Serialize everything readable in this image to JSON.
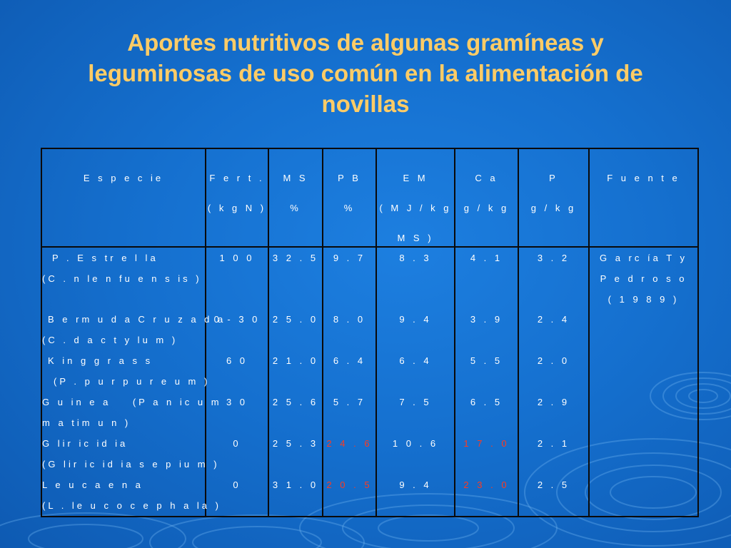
{
  "title": {
    "line1": "Aportes nutritivos de algunas gramíneas y",
    "line2": "leguminosas de uso común en la alimentación de",
    "line3": "novillas"
  },
  "colors": {
    "background": "#1570cf",
    "title": "#ffcc66",
    "text": "#ffffff",
    "highlight": "#ff3a1f",
    "border": "#0a0a0a"
  },
  "table": {
    "headers": [
      {
        "lines": [
          "E s p e c ie"
        ]
      },
      {
        "lines": [
          "F e r t .",
          "( k g N )"
        ]
      },
      {
        "lines": [
          "M S",
          "%"
        ]
      },
      {
        "lines": [
          "P B",
          "%"
        ]
      },
      {
        "lines": [
          "E M",
          "( M J / k g",
          "M S )"
        ]
      },
      {
        "lines": [
          "C a",
          "g / k g"
        ]
      },
      {
        "lines": [
          "P",
          "g / k g"
        ]
      },
      {
        "lines": [
          "F u e n t e"
        ]
      }
    ],
    "rows": [
      {
        "species": "P . E s tr e l la",
        "scientific": "(C . n le n fu e n s is )",
        "fert": "1 0 0",
        "ms": "3 2 . 5",
        "pb": "9 . 7",
        "em": "8 . 3",
        "ca": "4 . 1",
        "p": "3 . 2"
      },
      {
        "species": "B e rm u d a C r u z a d a",
        "scientific": "(C . d a c t y lu m )",
        "fert": "0 - 3 0",
        "ms": "2 5 . 0",
        "pb": "8 . 0",
        "em": "9 . 4",
        "ca": "3 . 9",
        "p": "2 . 4"
      },
      {
        "species": "K in g g r a s s",
        "scientific": "(P . p u r p u r e u m )",
        "fert": "6 0",
        "ms": "2 1 . 0",
        "pb": "6 . 4",
        "em": "6 . 4",
        "ca": "5 . 5",
        "p": "2 . 0"
      },
      {
        "species": "G u in e a    (P a n ic u m",
        "scientific": "m a tim u n )",
        "fert": "3 0",
        "ms": "2 5 . 6",
        "pb": "5 . 7",
        "em": "7 . 5",
        "ca": "6 . 5",
        "p": "2 . 9"
      },
      {
        "species": "G lir ic id ia",
        "scientific": "(G lir ic id ia s e p iu m )",
        "fert": "0",
        "ms": "2 5 . 3",
        "pb": "2 4 . 6",
        "em": "1 0 . 6",
        "ca": "1 7 . 0",
        "p": "2 . 1"
      },
      {
        "species": "L e u c a e n a",
        "scientific": "(L . le u c o c e p h a la )",
        "fert": "0",
        "ms": "3 1 . 0",
        "pb": "2 0 . 5",
        "em": "9 . 4",
        "ca": "2 3 . 0",
        "p": "2 . 5"
      }
    ],
    "source": [
      "G a rc ía  T  y",
      "P e d r o s o",
      "( 1 9 8 9 )"
    ]
  }
}
